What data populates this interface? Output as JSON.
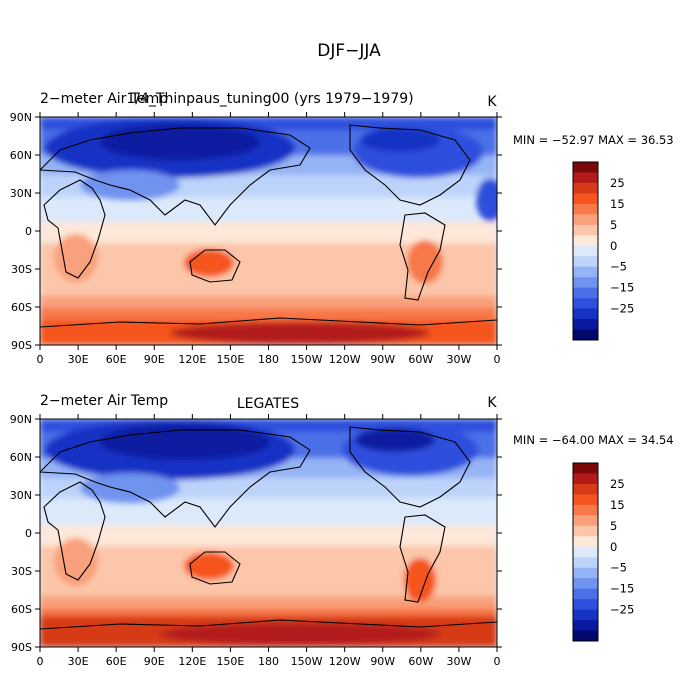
{
  "chart_data": {
    "type": "heatmap",
    "title": "DJF−JJA",
    "units": "K",
    "x_ticks": [
      "0",
      "30E",
      "60E",
      "90E",
      "120E",
      "150E",
      "180",
      "150W",
      "120W",
      "90W",
      "60W",
      "30W",
      "0"
    ],
    "y_ticks": [
      "90N",
      "60N",
      "30N",
      "0",
      "30S",
      "60S",
      "90S"
    ],
    "colorbar": {
      "tick_labels": [
        "25",
        "15",
        "5",
        "0",
        "−5",
        "−15",
        "−25"
      ],
      "colors": [
        "#7a0a0a",
        "#b31b1b",
        "#d63a18",
        "#f5541f",
        "#f7784a",
        "#f9a07c",
        "#fbc6a9",
        "#fde8d9",
        "#dbe9fb",
        "#bdd3fa",
        "#95b4f5",
        "#6f93ef",
        "#4b70e8",
        "#2f50dd",
        "#1733c4",
        "#0a1aa0",
        "#04086e"
      ]
    },
    "panels": [
      {
        "left_title": "2−meter Air Temp",
        "center_title": "1/4_Thinpaus_tuning00 (yrs 1979−1979)",
        "units": "K",
        "min": -52.97,
        "max": 36.53,
        "minmax_text": "MIN = −52.97  MAX =  36.53"
      },
      {
        "left_title": "2−meter Air Temp",
        "center_title": "LEGATES",
        "units": "K",
        "min": -64.0,
        "max": 34.54,
        "minmax_text": "MIN = −64.00  MAX =  34.54"
      }
    ]
  }
}
